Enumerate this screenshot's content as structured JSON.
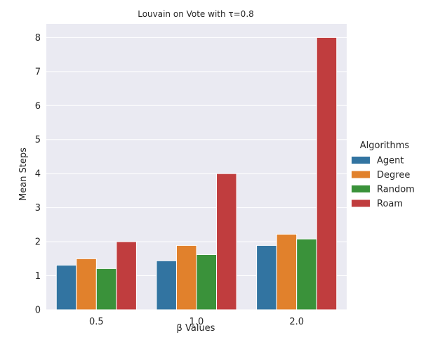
{
  "chart_data": {
    "type": "bar",
    "title": "Louvain on Vote with τ=0.8",
    "xlabel": "β Values",
    "ylabel": "Mean Steps",
    "categories": [
      "0.5",
      "1.0",
      "2.0"
    ],
    "ylim": [
      0,
      8.4
    ],
    "yticks": [
      "0",
      "1",
      "2",
      "3",
      "4",
      "5",
      "6",
      "7",
      "8"
    ],
    "grid": true,
    "legend": {
      "title": "Algorithms",
      "placement": "right"
    },
    "series": [
      {
        "name": "Agent",
        "color": "#3274a1",
        "values": [
          1.31,
          1.44,
          1.89
        ]
      },
      {
        "name": "Degree",
        "color": "#e1812c",
        "values": [
          1.5,
          1.89,
          2.22
        ]
      },
      {
        "name": "Random",
        "color": "#3a923a",
        "values": [
          1.21,
          1.62,
          2.08
        ]
      },
      {
        "name": "Roam",
        "color": "#c03d3e",
        "values": [
          2.0,
          4.0,
          8.0
        ]
      }
    ],
    "colors": {
      "plot_background": "#eaeaf2",
      "grid": "#ffffff"
    }
  }
}
